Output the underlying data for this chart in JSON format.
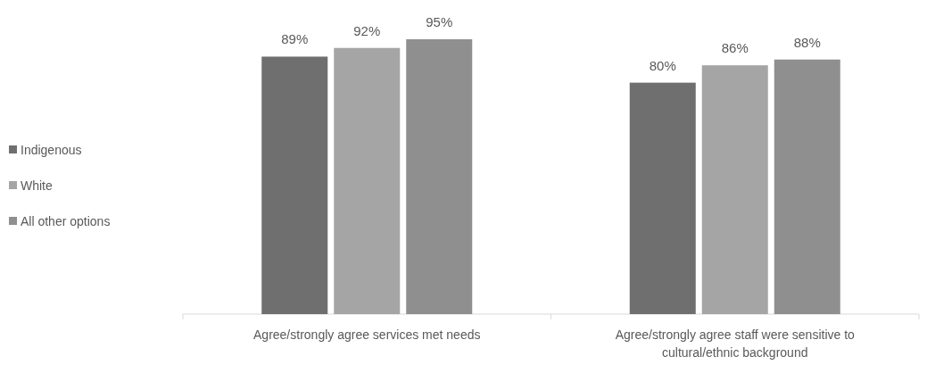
{
  "chart_data": {
    "type": "bar",
    "categories": [
      "Agree/strongly agree services met needs",
      "Agree/strongly agree staff were sensitive to cultural/ethnic background"
    ],
    "series": [
      {
        "name": "Indigenous",
        "color": "#6f6f6f",
        "values": [
          89,
          80
        ],
        "value_labels": [
          "89%",
          "80%"
        ]
      },
      {
        "name": "White",
        "color": "#a5a5a5",
        "values": [
          92,
          86
        ],
        "value_labels": [
          "92%",
          "86%"
        ]
      },
      {
        "name": "All other options",
        "color": "#8f8f8f",
        "values": [
          95,
          88
        ],
        "value_labels": [
          "95%",
          "88%"
        ]
      }
    ],
    "legend": "left"
  }
}
